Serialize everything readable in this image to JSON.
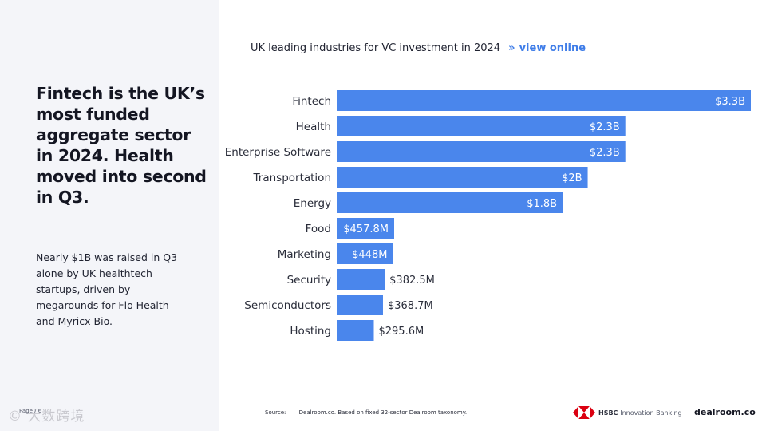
{
  "left": {
    "headline": "Fintech is the UK’s most funded aggregate sector in 2024. Health moved into second in Q3.",
    "body": "Nearly $1B was raised in Q3 alone by UK healthtech startups, driven by megarounds for Flo Health and Myricx Bio.",
    "page_label": "Page / 6",
    "watermark": "© 大数跨境"
  },
  "chart_header": {
    "title": "UK leading industries for VC investment in 2024",
    "chevron": "»",
    "link": "view online"
  },
  "chart_data": {
    "type": "bar",
    "orientation": "horizontal",
    "title": "UK leading industries for VC investment in 2024",
    "categories": [
      "Fintech",
      "Health",
      "Enterprise Software",
      "Transportation",
      "Energy",
      "Food",
      "Marketing",
      "Security",
      "Semiconductors",
      "Hosting"
    ],
    "values": [
      3.3,
      2.3,
      2.3,
      2.0,
      1.8,
      0.4578,
      0.448,
      0.3825,
      0.3687,
      0.2956
    ],
    "value_labels": [
      "$3.3B",
      "$2.3B",
      "$2.3B",
      "$2B",
      "$1.8B",
      "$457.8M",
      "$448M",
      "$382.5M",
      "$368.7M",
      "$295.6M"
    ],
    "units": "USD billions",
    "xlim": [
      0,
      3.3
    ],
    "grid": false,
    "bar_color": "#4a86ec"
  },
  "footer": {
    "source_label": "Source:",
    "source_text": "Dealroom.co. Based on fixed 32-sector Dealroom taxonomy.",
    "hsbc_brand": "HSBC",
    "hsbc_sub": "Innovation Banking",
    "dealroom": "dealroom.co"
  },
  "colors": {
    "bar": "#4a86ec",
    "link": "#3f7de8",
    "hsbc_red": "#db0011"
  }
}
